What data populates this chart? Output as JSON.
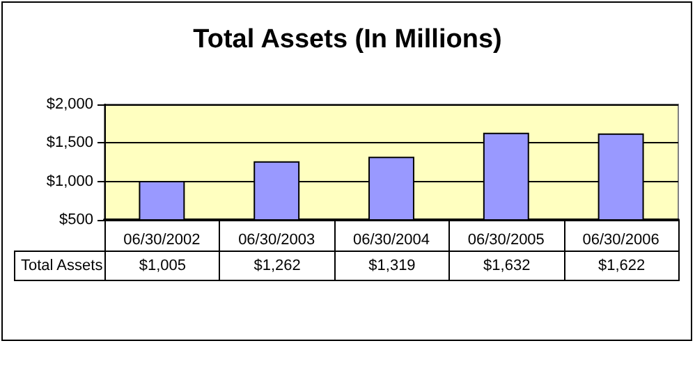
{
  "chart_data": {
    "type": "bar",
    "title": "Total Assets (In Millions)",
    "categories": [
      "06/30/2002",
      "06/30/2003",
      "06/30/2004",
      "06/30/2005",
      "06/30/2006"
    ],
    "series": [
      {
        "name": "Total Assets",
        "color": "#9999ff",
        "values": [
          1005,
          1262,
          1319,
          1632,
          1622
        ],
        "value_labels": [
          "$1,005",
          "$1,262",
          "$1,319",
          "$1,632",
          "$1,622"
        ]
      }
    ],
    "ylim": [
      500,
      2000
    ],
    "yticks": [
      {
        "value": 500,
        "label": "$500"
      },
      {
        "value": 1000,
        "label": "$1,000"
      },
      {
        "value": 1500,
        "label": "$1,500"
      },
      {
        "value": 2000,
        "label": "$2,000"
      }
    ],
    "grid": "y",
    "legend": "bottom"
  }
}
